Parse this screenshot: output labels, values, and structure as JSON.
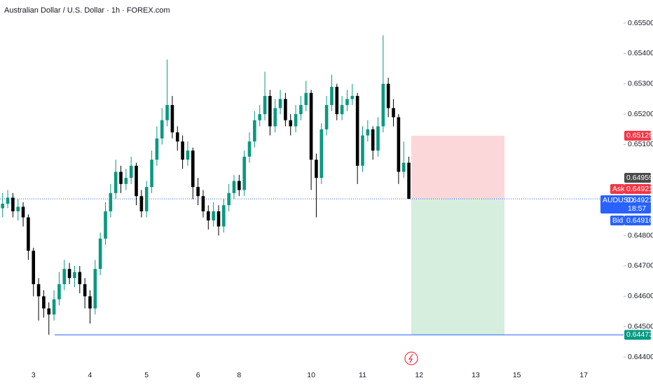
{
  "chart_data": {
    "type": "candlestick",
    "title": "Australian Dollar / U.S. Dollar · 1h · FOREX.com",
    "up_color": "#089981",
    "down_color": "#000000",
    "categories": [
      null,
      null,
      null,
      null,
      null,
      null,
      "3",
      null,
      null,
      null,
      null,
      null,
      null,
      null,
      null,
      null,
      null,
      "4",
      null,
      null,
      null,
      null,
      null,
      null,
      null,
      null,
      null,
      null,
      "5",
      null,
      null,
      null,
      null,
      null,
      null,
      null,
      null,
      null,
      "6",
      null,
      null,
      null,
      null,
      null,
      null,
      null,
      "8",
      null,
      null,
      null,
      null,
      null,
      null,
      null,
      null,
      null,
      null,
      null,
      null,
      null,
      "10",
      null,
      null,
      null,
      null,
      null,
      null,
      null,
      null,
      null,
      "11",
      null,
      null,
      null,
      null,
      null,
      null,
      null,
      null,
      null,
      null,
      "12",
      null,
      null,
      null,
      null,
      null,
      null,
      null,
      null,
      null,
      null,
      "13",
      null,
      null,
      null,
      null,
      null,
      null,
      null,
      "15",
      null,
      null,
      null,
      null,
      null,
      null,
      null,
      null,
      null,
      null,
      null,
      null,
      "17",
      null,
      null,
      null
    ],
    "open": [
      0.6489,
      0.64905,
      0.64925,
      0.6488,
      0.64895,
      0.6486,
      0.6475,
      0.6464,
      0.646,
      0.6456,
      0.6454,
      0.6459,
      0.6464,
      0.6469,
      0.6466,
      0.6468,
      0.6464,
      0.646,
      0.6456,
      0.6469,
      0.6479,
      0.6488,
      0.6494,
      0.6501,
      0.6497,
      0.6499,
      0.6503,
      0.6493,
      0.6488,
      0.6496,
      0.6505,
      0.6512,
      0.6518,
      0.6523,
      0.6514,
      0.6511,
      0.6505,
      0.6508,
      0.6496,
      0.6493,
      0.6488,
      0.6485,
      0.6488,
      0.6483,
      0.649,
      0.6494,
      0.6498,
      0.6495,
      0.6506,
      0.6511,
      0.6518,
      0.652,
      0.6526,
      0.6516,
      0.6522,
      0.6525,
      0.6518,
      0.6516,
      0.652,
      0.6523,
      0.6527,
      0.6505,
      0.6499,
      0.6515,
      0.6523,
      0.6529,
      0.652,
      0.6523,
      0.6525,
      0.6526,
      0.6503,
      0.6513,
      0.6515,
      0.6508,
      0.6516,
      0.653,
      0.6522,
      0.6519,
      0.6501,
      0.6504,
      null,
      null,
      null,
      null,
      null,
      null,
      null,
      null,
      null,
      null,
      null,
      null,
      null,
      null,
      null,
      null,
      null,
      null,
      null,
      null,
      null,
      null,
      null,
      null,
      null,
      null,
      null,
      null,
      null,
      null,
      null,
      null,
      null,
      null,
      null,
      null,
      null
    ],
    "high": [
      0.6494,
      0.6495,
      0.6494,
      0.6492,
      0.6491,
      0.6487,
      0.6476,
      0.6466,
      0.6462,
      0.6458,
      0.6462,
      0.6468,
      0.6472,
      0.6471,
      0.647,
      0.647,
      0.6466,
      0.6462,
      0.6472,
      0.6481,
      0.6491,
      0.6497,
      0.6505,
      0.6503,
      0.6502,
      0.6506,
      0.6504,
      0.6495,
      0.6498,
      0.6508,
      0.6516,
      0.6522,
      0.6538,
      0.6526,
      0.6516,
      0.6513,
      0.6511,
      0.6509,
      0.6499,
      0.6495,
      0.649,
      0.6491,
      0.649,
      0.6492,
      0.6497,
      0.65,
      0.65,
      0.6508,
      0.6514,
      0.6521,
      0.6523,
      0.6534,
      0.6528,
      0.6525,
      0.6528,
      0.6527,
      0.652,
      0.6523,
      0.6526,
      0.6531,
      0.6528,
      0.6507,
      0.6517,
      0.6526,
      0.6533,
      0.653,
      0.6526,
      0.6528,
      0.653,
      0.6527,
      0.6516,
      0.6518,
      0.6516,
      0.6519,
      0.6546,
      0.6532,
      0.6525,
      0.652,
      0.6511,
      0.6506,
      null,
      null,
      null,
      null,
      null,
      null,
      null,
      null,
      null,
      null,
      null,
      null,
      null,
      null,
      null,
      null,
      null,
      null,
      null,
      null,
      null,
      null,
      null,
      null,
      null,
      null,
      null,
      null,
      null,
      null,
      null,
      null,
      null,
      null,
      null,
      null,
      null
    ],
    "low": [
      0.6486,
      0.6489,
      0.6486,
      0.6485,
      0.6483,
      0.6472,
      0.646,
      0.6452,
      0.6453,
      0.64473,
      0.6452,
      0.6457,
      0.6462,
      0.6464,
      0.6463,
      0.6461,
      0.6456,
      0.6451,
      0.6454,
      0.6467,
      0.6477,
      0.6486,
      0.6492,
      0.6494,
      0.6495,
      0.6497,
      0.649,
      0.6486,
      0.6486,
      0.6494,
      0.6503,
      0.651,
      0.6516,
      0.6512,
      0.6508,
      0.6502,
      0.6503,
      0.6492,
      0.649,
      0.6486,
      0.6482,
      0.6483,
      0.648,
      0.6481,
      0.6488,
      0.6492,
      0.6493,
      0.6493,
      0.6504,
      0.6509,
      0.6516,
      0.6518,
      0.6513,
      0.6514,
      0.652,
      0.6516,
      0.6513,
      0.6514,
      0.6518,
      0.6521,
      0.6495,
      0.6486,
      0.6497,
      0.6513,
      0.6521,
      0.6518,
      0.6518,
      0.6521,
      0.6523,
      0.6497,
      0.6501,
      0.6511,
      0.6505,
      0.6506,
      0.6514,
      0.6519,
      0.6516,
      0.6497,
      0.6499,
      0.64921,
      null,
      null,
      null,
      null,
      null,
      null,
      null,
      null,
      null,
      null,
      null,
      null,
      null,
      null,
      null,
      null,
      null,
      null,
      null,
      null,
      null,
      null,
      null,
      null,
      null,
      null,
      null,
      null,
      null,
      null,
      null,
      null,
      null,
      null,
      null,
      null,
      null
    ],
    "close": [
      0.64905,
      0.64925,
      0.6488,
      0.64895,
      0.6486,
      0.6475,
      0.6464,
      0.646,
      0.6456,
      0.6454,
      0.6459,
      0.6464,
      0.6469,
      0.6466,
      0.6468,
      0.6464,
      0.646,
      0.6456,
      0.6469,
      0.6479,
      0.6488,
      0.6494,
      0.6501,
      0.6497,
      0.6499,
      0.6503,
      0.6493,
      0.6488,
      0.6496,
      0.6505,
      0.6512,
      0.6518,
      0.6523,
      0.6514,
      0.6511,
      0.6505,
      0.6508,
      0.6496,
      0.6493,
      0.6488,
      0.6485,
      0.6488,
      0.6483,
      0.649,
      0.6494,
      0.6498,
      0.6495,
      0.6506,
      0.6511,
      0.6518,
      0.652,
      0.6526,
      0.6516,
      0.6522,
      0.6525,
      0.6518,
      0.6516,
      0.652,
      0.6523,
      0.6527,
      0.6505,
      0.6499,
      0.6515,
      0.6523,
      0.6529,
      0.652,
      0.6523,
      0.6525,
      0.6526,
      0.6503,
      0.6513,
      0.6515,
      0.6508,
      0.6516,
      0.653,
      0.6522,
      0.6519,
      0.6501,
      0.6504,
      0.64921,
      null,
      null,
      null,
      null,
      null,
      null,
      null,
      null,
      null,
      null,
      null,
      null,
      null,
      null,
      null,
      null,
      null,
      null,
      null,
      null,
      null,
      null,
      null,
      null,
      null,
      null,
      null,
      null,
      null,
      null,
      null,
      null,
      null,
      null,
      null,
      null,
      null
    ],
    "ylim": [
      0.6438,
      0.6557
    ],
    "yticks": [
      {
        "value": 0.655,
        "label": "0.65500"
      },
      {
        "value": 0.654,
        "label": "0.65400"
      },
      {
        "value": 0.653,
        "label": "0.65300"
      },
      {
        "value": 0.652,
        "label": "0.65200"
      },
      {
        "value": 0.651,
        "label": "0.65100"
      },
      {
        "value": 0.648,
        "label": "0.64800"
      },
      {
        "value": 0.647,
        "label": "0.64700"
      },
      {
        "value": 0.646,
        "label": "0.64600"
      },
      {
        "value": 0.645,
        "label": "0.64500"
      },
      {
        "value": 0.644,
        "label": "0.64400"
      }
    ],
    "position": {
      "stop": 0.65129,
      "entry": 0.64921,
      "target": 0.64473
    },
    "marker_price": 0.64959,
    "ask": {
      "label": "Ask",
      "value": 0.64921
    },
    "symbol": {
      "label": "AUDUSD",
      "value": 0.64921,
      "countdown": "18:57"
    },
    "bid": {
      "label": "Bid",
      "value": 0.64916
    }
  }
}
